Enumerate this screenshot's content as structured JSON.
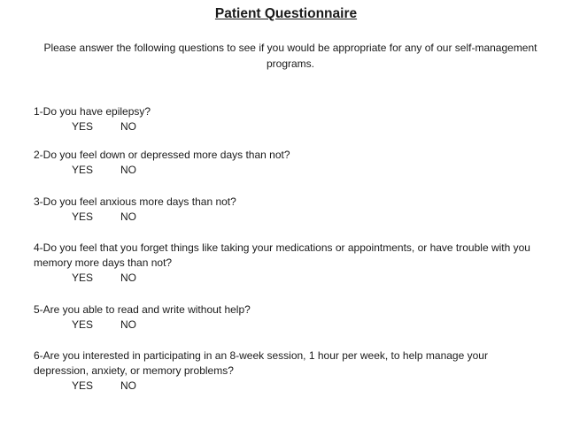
{
  "title": "Patient Questionnaire",
  "intro": "Please answer the following questions to see if you would be appropriate for any of our self-management programs.",
  "questions": [
    {
      "text": "1-Do you have epilepsy?",
      "yes": "YES",
      "no": "NO"
    },
    {
      "text": "2-Do you feel down or depressed more days than not?",
      "yes": "YES",
      "no": "NO"
    },
    {
      "text": "3-Do you feel anxious more days than not?",
      "yes": "YES",
      "no": "NO"
    },
    {
      "text": "4-Do you feel that you forget things like taking your medications or appointments, or have trouble with you memory more days than not?",
      "yes": "YES",
      "no": "NO"
    },
    {
      "text": "5-Are you able to read and write without help?",
      "yes": "YES",
      "no": "NO"
    },
    {
      "text": "6-Are you interested in participating in an 8-week session, 1 hour per week, to help manage your depression, anxiety, or memory problems?",
      "yes": "YES",
      "no": "NO"
    }
  ]
}
